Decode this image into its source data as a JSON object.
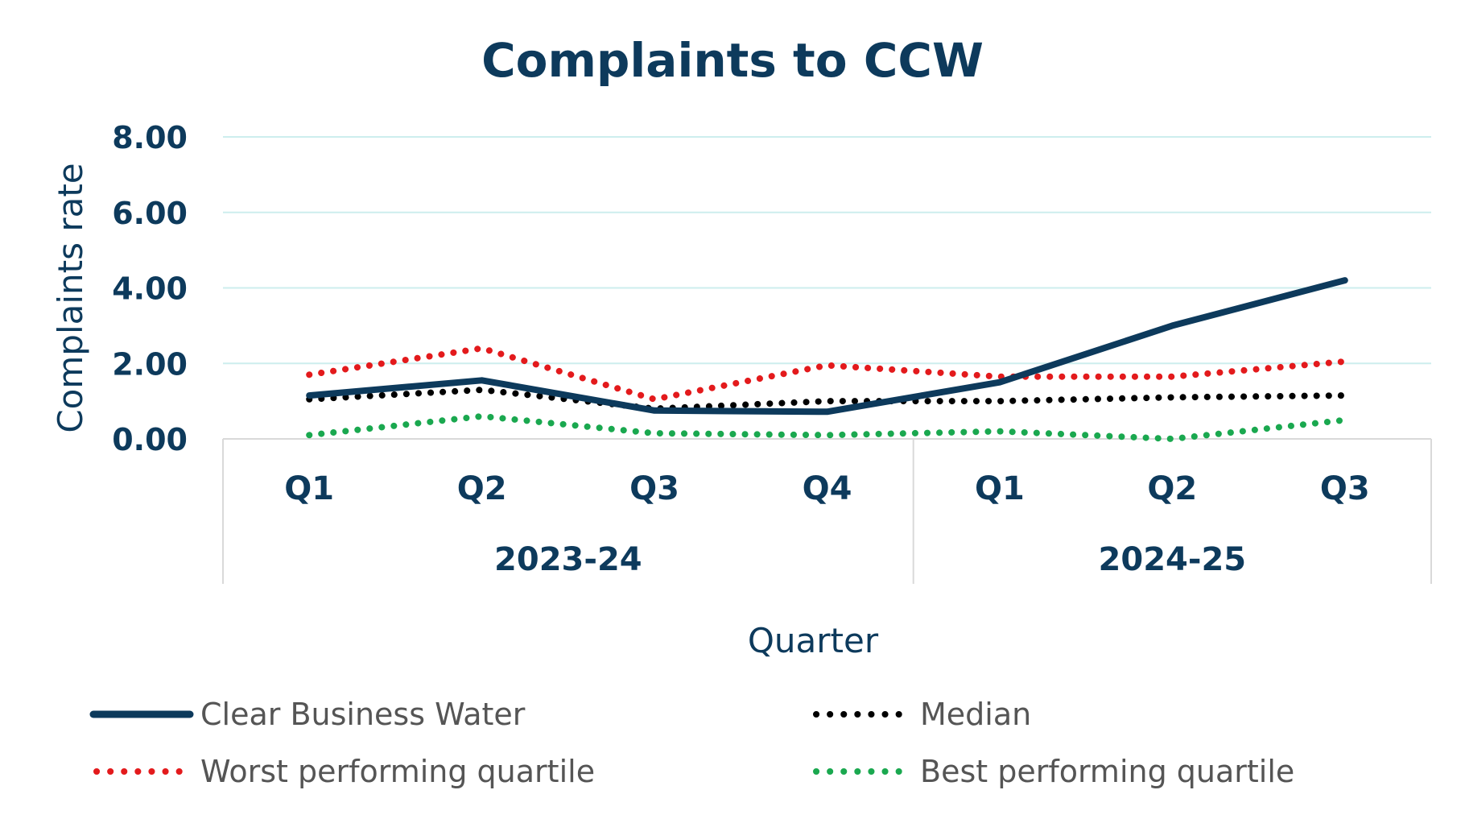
{
  "chart_data": {
    "type": "line",
    "title": "Complaints to CCW",
    "xlabel": "Quarter",
    "ylabel": "Complaints rate",
    "ylim": [
      0,
      8
    ],
    "yticks": [
      "0.00",
      "2.00",
      "4.00",
      "6.00",
      "8.00"
    ],
    "categories": [
      "Q1",
      "Q2",
      "Q3",
      "Q4",
      "Q1",
      "Q2",
      "Q3"
    ],
    "groups": [
      {
        "label": "2023-24",
        "count": 4
      },
      {
        "label": "2024-25",
        "count": 3
      }
    ],
    "grid": true,
    "legend_position": "bottom",
    "series": [
      {
        "name": "Clear Business Water",
        "style": "solid",
        "color": "#0d3a5c",
        "values": [
          1.15,
          1.55,
          0.75,
          0.72,
          1.5,
          3.0,
          4.2
        ]
      },
      {
        "name": "Median",
        "style": "dotted",
        "color": "#000000",
        "values": [
          1.05,
          1.3,
          0.8,
          1.0,
          1.0,
          1.1,
          1.15
        ]
      },
      {
        "name": "Worst performing quartile",
        "style": "dotted",
        "color": "#e31a1c",
        "values": [
          1.7,
          2.4,
          1.05,
          1.95,
          1.65,
          1.65,
          2.05
        ]
      },
      {
        "name": "Best performing quartile",
        "style": "dotted",
        "color": "#1aa84f",
        "values": [
          0.1,
          0.6,
          0.15,
          0.1,
          0.2,
          0.0,
          0.5
        ]
      }
    ]
  }
}
